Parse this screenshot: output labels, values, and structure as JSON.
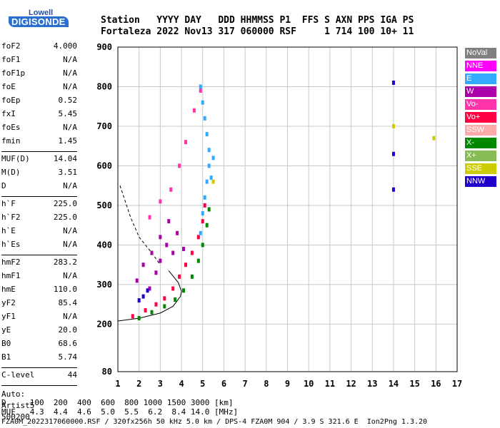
{
  "logo": {
    "line1": "Lowell",
    "line2": "DIGISONDE"
  },
  "header": {
    "row1": "Station   YYYY DAY   DDD HHMMSS P1  FFS S AXN PPS IGA PS",
    "row2": "Fortaleza 2022 Nov13 317 060000 RSF     1 714 100 10+ 11"
  },
  "params": [
    {
      "label": "foF2",
      "value": "4.000"
    },
    {
      "label": "foF1",
      "value": "N/A"
    },
    {
      "label": "foF1p",
      "value": "N/A"
    },
    {
      "label": "foE",
      "value": "N/A"
    },
    {
      "label": "foEp",
      "value": "0.52"
    },
    {
      "label": "fxI",
      "value": "5.45"
    },
    {
      "label": "foEs",
      "value": "N/A"
    },
    {
      "label": "fmin",
      "value": "1.45"
    },
    {
      "label": "MUF(D)",
      "value": "14.04"
    },
    {
      "label": "M(D)",
      "value": "3.51"
    },
    {
      "label": "D",
      "value": "N/A"
    },
    {
      "label": "h`F",
      "value": "225.0"
    },
    {
      "label": "h`F2",
      "value": "225.0"
    },
    {
      "label": "h`E",
      "value": "N/A"
    },
    {
      "label": "h`Es",
      "value": "N/A"
    },
    {
      "label": "hmF2",
      "value": "283.2"
    },
    {
      "label": "hmF1",
      "value": "N/A"
    },
    {
      "label": "hmE",
      "value": "110.0"
    },
    {
      "label": "yF2",
      "value": "85.4"
    },
    {
      "label": "yF1",
      "value": "N/A"
    },
    {
      "label": "yE",
      "value": "20.0"
    },
    {
      "label": "B0",
      "value": "68.6"
    },
    {
      "label": "B1",
      "value": "5.74"
    },
    {
      "label": "C-level",
      "value": "44"
    }
  ],
  "auto": {
    "line1": "Auto:",
    "line2": "Artist5",
    "line3": "500200"
  },
  "legend": [
    {
      "label": "NoVal",
      "color": "#808080"
    },
    {
      "label": "NNE",
      "color": "#ff00ff"
    },
    {
      "label": "E",
      "color": "#33aaff"
    },
    {
      "label": "W",
      "color": "#aa00aa"
    },
    {
      "label": "Vo-",
      "color": "#ff33aa"
    },
    {
      "label": "Vo+",
      "color": "#ff0044"
    },
    {
      "label": "SSW",
      "color": "#ffaaaa"
    },
    {
      "label": "X-",
      "color": "#008800"
    },
    {
      "label": "X+",
      "color": "#88bb55"
    },
    {
      "label": "SSE",
      "color": "#cccc00"
    },
    {
      "label": "NNW",
      "color": "#2200cc"
    }
  ],
  "footer": {
    "row1": "D     100  200  400  600  800 1000 1500 3000 [km]",
    "row2": "MUF   4.3  4.4  4.6  5.0  5.5  6.2  8.4 14.0 [MHz]",
    "row3": "FZA0M_2022317060000.RSF / 320fx256h 50 kHz 5.0 km / DPS-4 FZA0M 904 / 3.9 S 321.6 E  Ion2Png 1.3.20"
  },
  "chart_data": {
    "type": "scatter",
    "xlim": [
      1,
      17
    ],
    "ylim": [
      80,
      900
    ],
    "x_ticks": [
      1,
      2,
      3,
      4,
      5,
      6,
      7,
      8,
      9,
      10,
      11,
      12,
      13,
      14,
      15,
      16,
      17
    ],
    "y_ticks": [
      80,
      200,
      300,
      400,
      500,
      600,
      700,
      800,
      900
    ],
    "xlabel": "",
    "ylabel": "",
    "grid": true,
    "series": [
      {
        "name": "Vo+",
        "color": "#ff0044",
        "points": [
          [
            1.7,
            220
          ],
          [
            2.3,
            235
          ],
          [
            2.8,
            250
          ],
          [
            3.2,
            265
          ],
          [
            3.6,
            290
          ],
          [
            3.9,
            320
          ],
          [
            4.2,
            350
          ],
          [
            4.5,
            380
          ],
          [
            4.8,
            420
          ],
          [
            5.0,
            460
          ],
          [
            5.1,
            500
          ]
        ]
      },
      {
        "name": "X-",
        "color": "#008800",
        "points": [
          [
            2.0,
            215
          ],
          [
            2.6,
            230
          ],
          [
            3.2,
            245
          ],
          [
            3.7,
            262
          ],
          [
            4.1,
            285
          ],
          [
            4.5,
            320
          ],
          [
            4.8,
            360
          ],
          [
            5.0,
            400
          ],
          [
            5.2,
            450
          ],
          [
            5.3,
            490
          ]
        ]
      },
      {
        "name": "Vo-",
        "color": "#ff33aa",
        "points": [
          [
            2.5,
            470
          ],
          [
            3.0,
            510
          ],
          [
            3.5,
            540
          ],
          [
            3.9,
            600
          ],
          [
            4.2,
            660
          ],
          [
            4.6,
            740
          ],
          [
            4.9,
            790
          ]
        ]
      },
      {
        "name": "E",
        "color": "#33aaff",
        "points": [
          [
            4.9,
            430
          ],
          [
            5.0,
            480
          ],
          [
            5.1,
            520
          ],
          [
            5.2,
            560
          ],
          [
            5.3,
            600
          ],
          [
            5.3,
            640
          ],
          [
            5.2,
            680
          ],
          [
            5.1,
            720
          ],
          [
            5.0,
            760
          ],
          [
            4.9,
            800
          ],
          [
            5.4,
            570
          ],
          [
            5.5,
            620
          ]
        ]
      },
      {
        "name": "W",
        "color": "#aa00aa",
        "points": [
          [
            1.9,
            310
          ],
          [
            2.2,
            350
          ],
          [
            2.6,
            380
          ],
          [
            3.0,
            420
          ],
          [
            3.3,
            400
          ],
          [
            3.6,
            380
          ],
          [
            3.0,
            360
          ],
          [
            2.8,
            330
          ],
          [
            3.4,
            460
          ],
          [
            3.8,
            430
          ],
          [
            4.1,
            390
          ],
          [
            2.5,
            290
          ]
        ]
      },
      {
        "name": "NNW",
        "color": "#2200cc",
        "points": [
          [
            2.2,
            270
          ],
          [
            2.4,
            285
          ],
          [
            2.0,
            260
          ],
          [
            14.0,
            540
          ],
          [
            14.0,
            630
          ],
          [
            14.0,
            810
          ]
        ]
      },
      {
        "name": "SSE",
        "color": "#cccc00",
        "points": [
          [
            5.5,
            560
          ],
          [
            14.0,
            700
          ],
          [
            15.9,
            670
          ]
        ]
      }
    ],
    "lines": [
      {
        "name": "profile",
        "style": "solid",
        "points": [
          [
            1.0,
            208
          ],
          [
            2.0,
            215
          ],
          [
            3.0,
            228
          ],
          [
            3.6,
            245
          ],
          [
            3.95,
            270
          ],
          [
            4.0,
            283
          ],
          [
            3.85,
            305
          ],
          [
            3.4,
            335
          ]
        ]
      },
      {
        "name": "profile-extension",
        "style": "dashed",
        "points": [
          [
            1.1,
            550
          ],
          [
            1.6,
            470
          ],
          [
            2.0,
            420
          ],
          [
            2.6,
            380
          ],
          [
            3.0,
            350
          ]
        ]
      }
    ]
  }
}
